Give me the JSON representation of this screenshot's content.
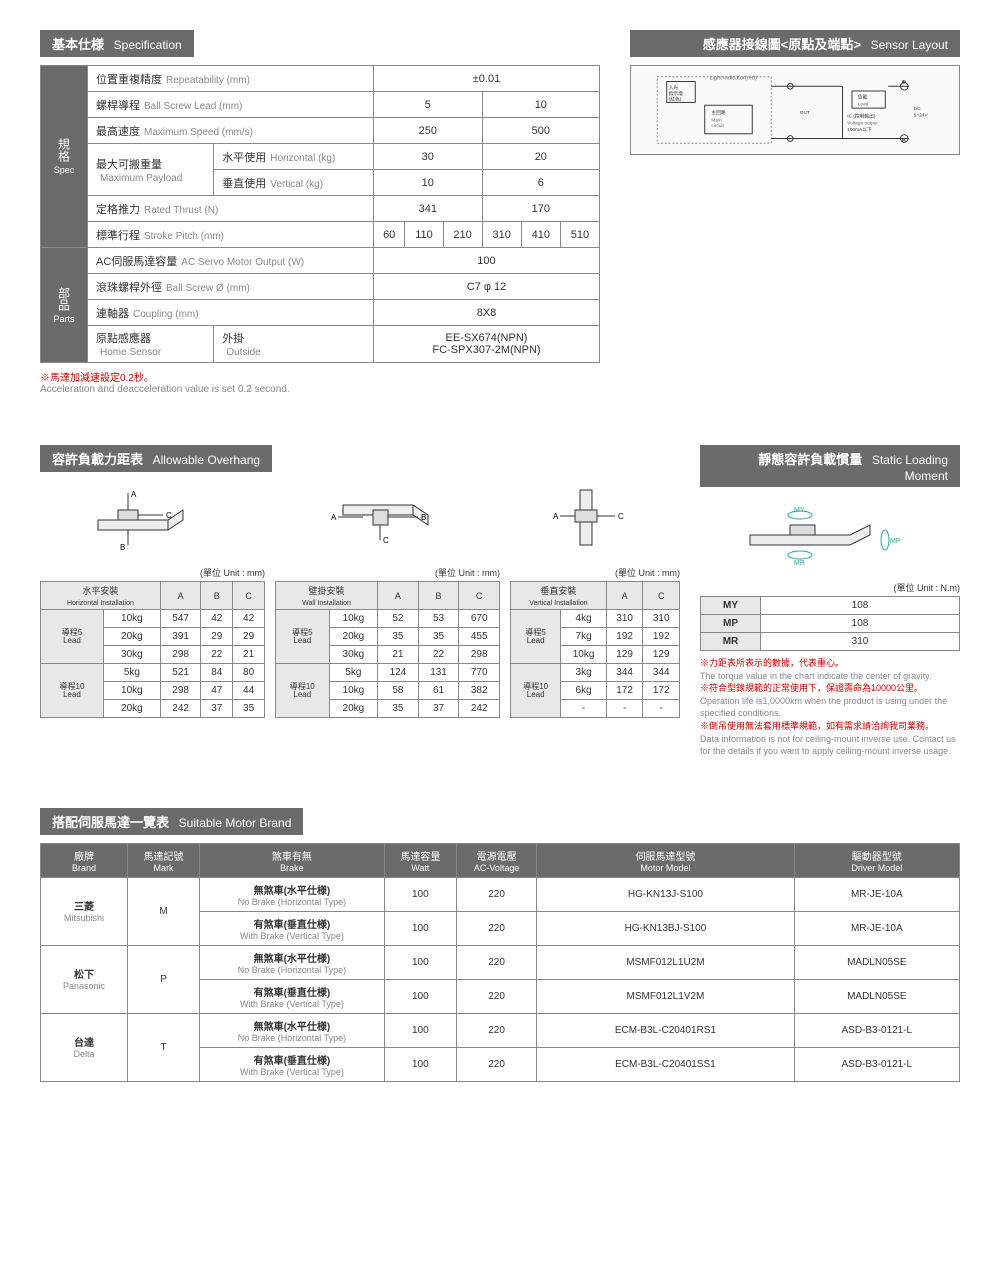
{
  "headers": {
    "spec": {
      "zh": "基本仕様",
      "en": "Specification"
    },
    "sensor": {
      "zh": "感應器接線圖<原點及端點>",
      "en": "Sensor Layout"
    },
    "overhang": {
      "zh": "容許負載力距表",
      "en": "Allowable Overhang"
    },
    "slm": {
      "zh": "靜態容許負載慣量",
      "en": "Static Loading Moment"
    },
    "motor": {
      "zh": "搭配伺服馬達一覽表",
      "en": "Suitable Motor Brand"
    }
  },
  "spec": {
    "side1": {
      "zh": "規格",
      "en": "Spec"
    },
    "side2": {
      "zh": "部品",
      "en": "Parts"
    },
    "rows": {
      "repeat": {
        "zh": "位置重複精度",
        "en": "Repeatability (mm)",
        "val": "±0.01"
      },
      "lead": {
        "zh": "螺桿導程",
        "en": "Ball Screw Lead (mm)",
        "v1": "5",
        "v2": "10"
      },
      "speed": {
        "zh": "最高速度",
        "en": "Maximum Speed (mm/s)",
        "v1": "250",
        "v2": "500"
      },
      "payload": {
        "zh": "最大可搬重量",
        "en": "Maximum Payload",
        "h_zh": "水平使用",
        "h_en": "Horizontal (kg)",
        "v_zh": "垂直使用",
        "v_en": "Vertical (kg)",
        "h1": "30",
        "h2": "20",
        "vv1": "10",
        "vv2": "6"
      },
      "thrust": {
        "zh": "定格推力",
        "en": "Rated Thrust (N)",
        "v1": "341",
        "v2": "170"
      },
      "stroke": {
        "zh": "標準行程",
        "en": "Stroke Pitch (mm)",
        "vals": [
          "60",
          "110",
          "210",
          "310",
          "410",
          "510"
        ]
      },
      "servo": {
        "zh": "AC伺服馬達容量",
        "en": "AC Servo Motor Output (W)",
        "val": "100"
      },
      "screw": {
        "zh": "滾珠螺桿外徑",
        "en": "Ball Screw Ø (mm)",
        "val": "C7 φ 12"
      },
      "coupling": {
        "zh": "連軸器",
        "en": "Coupling (mm)",
        "val": "8X8"
      },
      "home": {
        "zh": "原點感應器",
        "en": "Home Sensor",
        "out_zh": "外掛",
        "out_en": "Outside",
        "v1": "EE-SX674(NPN)",
        "v2": "FC-SPX307-2M(NPN)"
      }
    }
  },
  "note1": {
    "red": "※馬達加減速設定0.2秒。",
    "gray": "Acceleration and deacceleration value is set 0.2 second."
  },
  "sensor_labels": {
    "light": "Light indicator(red)",
    "indicator_zh": "入光\n指示燈\n(紅色)",
    "main_zh": "主回路",
    "main_en": "Main\ncircuit",
    "load_zh": "負載",
    "load_en": "Load",
    "out": "OUT",
    "ic": "IC (控制輸出)",
    "vo": "Voltage output",
    "ma": "100mA以下",
    "dc": "DC\n5~24V"
  },
  "unit_mm": "(單位 Unit : mm)",
  "unit_nm": "(單位 Unit : N.m)",
  "overhang": {
    "h": {
      "title_zh": "水平安裝",
      "title_en": "Horizontal Installation",
      "cols": [
        "A",
        "B",
        "C"
      ],
      "lead5": {
        "zh": "導程5",
        "en": "Lead"
      },
      "lead10": {
        "zh": "導程10",
        "en": "Lead"
      },
      "rows": [
        {
          "w": "10kg",
          "a": "547",
          "b": "42",
          "c": "42"
        },
        {
          "w": "20kg",
          "a": "391",
          "b": "29",
          "c": "29"
        },
        {
          "w": "30kg",
          "a": "298",
          "b": "22",
          "c": "21"
        },
        {
          "w": "5kg",
          "a": "521",
          "b": "84",
          "c": "80"
        },
        {
          "w": "10kg",
          "a": "298",
          "b": "47",
          "c": "44"
        },
        {
          "w": "20kg",
          "a": "242",
          "b": "37",
          "c": "35"
        }
      ]
    },
    "w": {
      "title_zh": "壁掛安裝",
      "title_en": "Wall Installation",
      "cols": [
        "A",
        "B",
        "C"
      ],
      "rows": [
        {
          "w": "10kg",
          "a": "52",
          "b": "53",
          "c": "670"
        },
        {
          "w": "20kg",
          "a": "35",
          "b": "35",
          "c": "455"
        },
        {
          "w": "30kg",
          "a": "21",
          "b": "22",
          "c": "298"
        },
        {
          "w": "5kg",
          "a": "124",
          "b": "131",
          "c": "770"
        },
        {
          "w": "10kg",
          "a": "58",
          "b": "61",
          "c": "382"
        },
        {
          "w": "20kg",
          "a": "35",
          "b": "37",
          "c": "242"
        }
      ]
    },
    "v": {
      "title_zh": "垂直安裝",
      "title_en": "Vertical Installation",
      "cols": [
        "A",
        "C"
      ],
      "rows": [
        {
          "w": "4kg",
          "a": "310",
          "c": "310"
        },
        {
          "w": "7kg",
          "a": "192",
          "c": "192"
        },
        {
          "w": "10kg",
          "a": "129",
          "c": "129"
        },
        {
          "w": "3kg",
          "a": "344",
          "c": "344"
        },
        {
          "w": "6kg",
          "a": "172",
          "c": "172"
        },
        {
          "w": "-",
          "a": "-",
          "c": "-"
        }
      ]
    }
  },
  "slm": {
    "rows": [
      {
        "k": "MY",
        "v": "108"
      },
      {
        "k": "MP",
        "v": "108"
      },
      {
        "k": "MR",
        "v": "310"
      }
    ],
    "notes": [
      {
        "r": "※力距表所表示的數據，代表重心。",
        "g": "The torque value in the chart indicate the center of gravity."
      },
      {
        "r": "※符合型錄規範的正常使用下，保證壽命為10000公里。",
        "g": "Operation life is1,0000km when the product is using under the specified conditions."
      },
      {
        "r": "※倒吊使用無法套用標準規範，如有需求請洽詢我司業務。",
        "g": "Data information is not for ceiling-mount inverse use. Contact us for the details if you want to apply ceiling-mount inverse usage."
      }
    ]
  },
  "motor": {
    "cols": {
      "brand": {
        "zh": "廠牌",
        "en": "Brand"
      },
      "mark": {
        "zh": "馬達記號",
        "en": "Mark"
      },
      "brake": {
        "zh": "煞車有無",
        "en": "Brake"
      },
      "watt": {
        "zh": "馬達容量",
        "en": "Watt"
      },
      "ac": {
        "zh": "電源電壓",
        "en": "AC-Voltage"
      },
      "model": {
        "zh": "伺服馬達型號",
        "en": "Motor Model"
      },
      "driver": {
        "zh": "驅動器型號",
        "en": "Driver Model"
      }
    },
    "brake_types": {
      "nb_zh": "無煞車(水平仕様)",
      "nb_en": "No Brake (Horizontal Type)",
      "wb_zh": "有煞車(垂直仕様)",
      "wb_en": "With Brake (Vertical Type)"
    },
    "rows": [
      {
        "brand_zh": "三菱",
        "brand_en": "Mitsubishi",
        "mark": "M",
        "nb": {
          "w": "100",
          "ac": "220",
          "m": "HG-KN13J-S100",
          "d": "MR-JE-10A"
        },
        "wb": {
          "w": "100",
          "ac": "220",
          "m": "HG-KN13BJ-S100",
          "d": "MR-JE-10A"
        }
      },
      {
        "brand_zh": "松下",
        "brand_en": "Panasonic",
        "mark": "P",
        "nb": {
          "w": "100",
          "ac": "220",
          "m": "MSMF012L1U2M",
          "d": "MADLN05SE"
        },
        "wb": {
          "w": "100",
          "ac": "220",
          "m": "MSMF012L1V2M",
          "d": "MADLN05SE"
        }
      },
      {
        "brand_zh": "台達",
        "brand_en": "Delta",
        "mark": "T",
        "nb": {
          "w": "100",
          "ac": "220",
          "m": "ECM-B3L-C20401RS1",
          "d": "ASD-B3-0121-L"
        },
        "wb": {
          "w": "100",
          "ac": "220",
          "m": "ECM-B3L-C20401SS1",
          "d": "ASD-B3-0121-L"
        }
      }
    ]
  }
}
